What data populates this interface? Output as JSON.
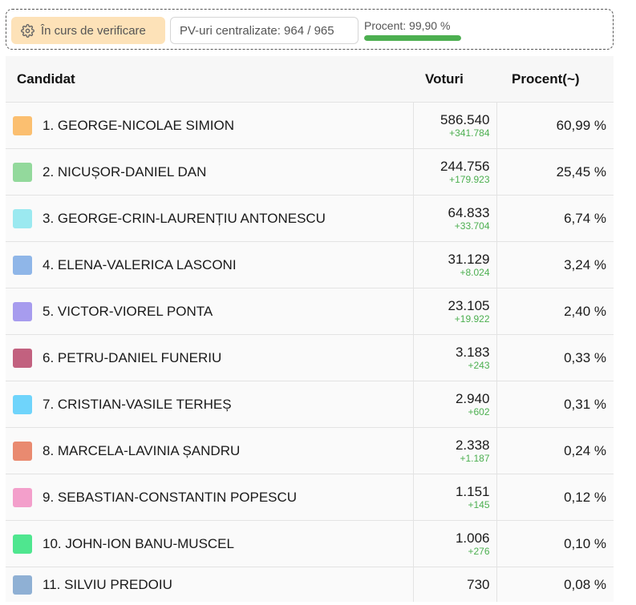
{
  "status": {
    "verification_label": "În curs de verificare",
    "pv_label": "PV-uri centralizate: 964 / 965",
    "percent_label": "Procent: 99,90 %",
    "percent_value": 99.9
  },
  "table": {
    "headers": {
      "candidate": "Candidat",
      "votes": "Voturi",
      "percent": "Procent(~)"
    },
    "rows": [
      {
        "name": "1. GEORGE-NICOLAE SIMION",
        "color": "#fbbf70",
        "votes": "586.540",
        "delta": "+341.784",
        "percent": "60,99 %"
      },
      {
        "name": "2. NICUȘOR-DANIEL DAN",
        "color": "#93d99c",
        "votes": "244.756",
        "delta": "+179.923",
        "percent": "25,45 %"
      },
      {
        "name": "3. GEORGE-CRIN-LAURENȚIU ANTONESCU",
        "color": "#9be9f0",
        "votes": "64.833",
        "delta": "+33.704",
        "percent": "6,74 %"
      },
      {
        "name": "4. ELENA-VALERICA LASCONI",
        "color": "#8fb6e8",
        "votes": "31.129",
        "delta": "+8.024",
        "percent": "3,24 %"
      },
      {
        "name": "5. VICTOR-VIOREL PONTA",
        "color": "#a79cee",
        "votes": "23.105",
        "delta": "+19.922",
        "percent": "2,40 %"
      },
      {
        "name": "6. PETRU-DANIEL FUNERIU",
        "color": "#c2617f",
        "votes": "3.183",
        "delta": "+243",
        "percent": "0,33 %"
      },
      {
        "name": "7. CRISTIAN-VASILE TERHEȘ",
        "color": "#6fd4fb",
        "votes": "2.940",
        "delta": "+602",
        "percent": "0,31 %"
      },
      {
        "name": "8. MARCELA-LAVINIA ȘANDRU",
        "color": "#e98a70",
        "votes": "2.338",
        "delta": "+1.187",
        "percent": "0,24 %"
      },
      {
        "name": "9. SEBASTIAN-CONSTANTIN POPESCU",
        "color": "#f39fcb",
        "votes": "1.151",
        "delta": "+145",
        "percent": "0,12 %"
      },
      {
        "name": "10. JOHN-ION BANU-MUSCEL",
        "color": "#4fe68f",
        "votes": "1.006",
        "delta": "+276",
        "percent": "0,10 %"
      },
      {
        "name": "11. SILVIU PREDOIU",
        "color": "#8fb0d4",
        "votes": "730",
        "delta": "",
        "percent": "0,08 %"
      }
    ]
  }
}
